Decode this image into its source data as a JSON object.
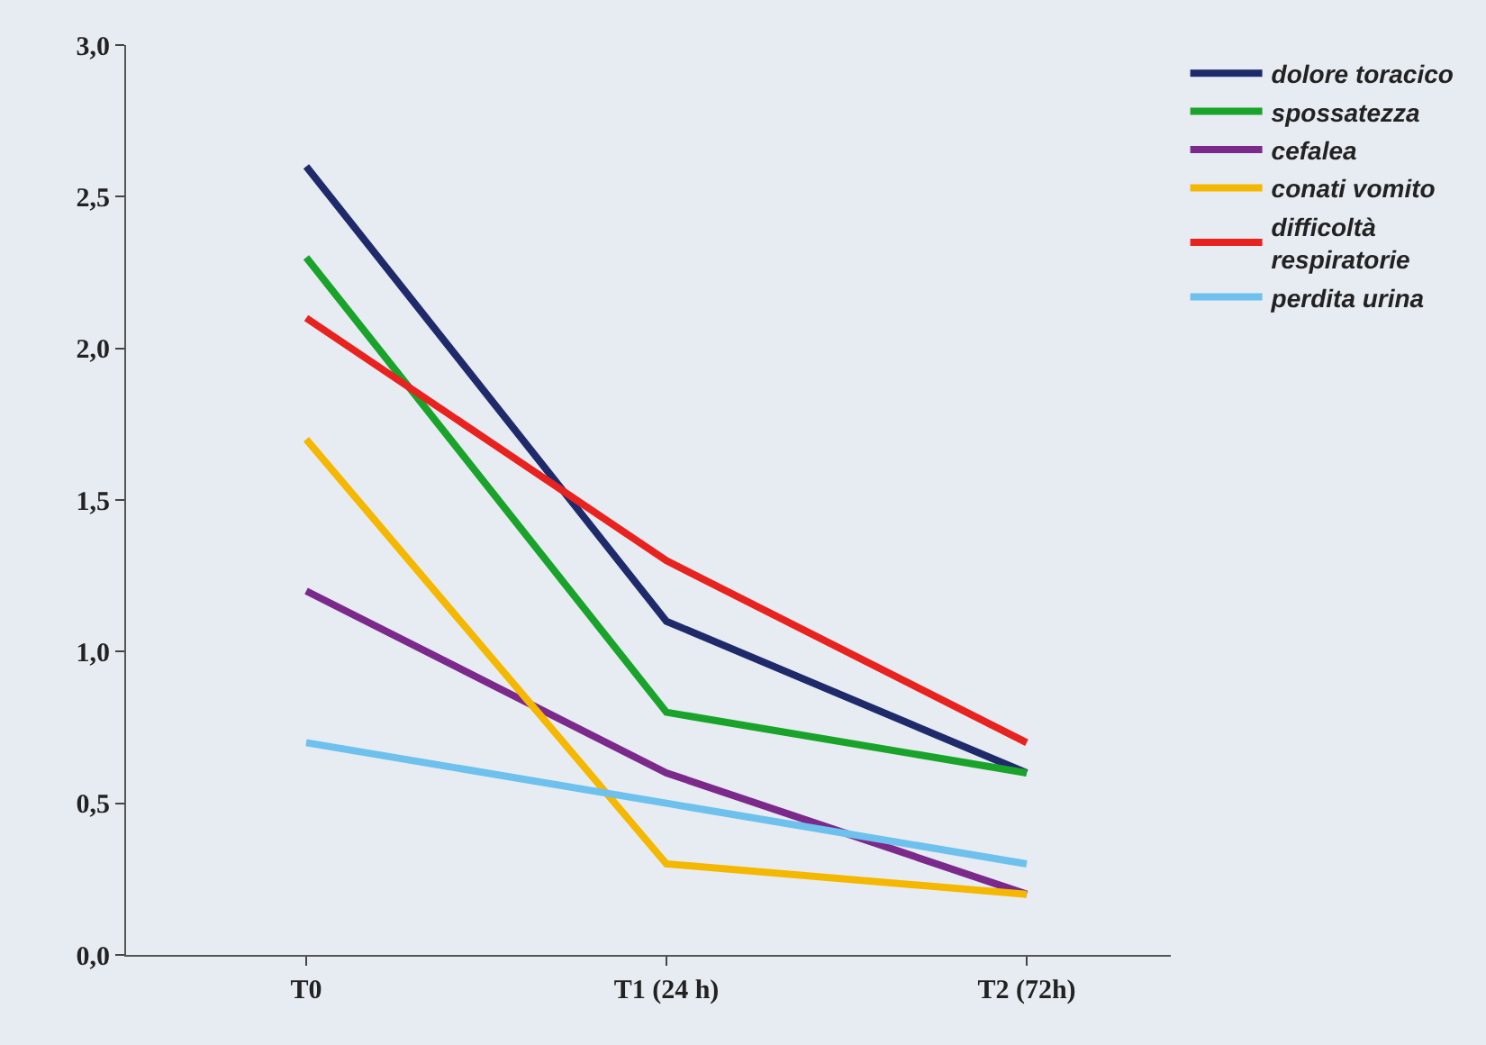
{
  "chart_data": {
    "type": "line",
    "categories": [
      "T0",
      "T1 (24 h)",
      "T2 (72h)"
    ],
    "series": [
      {
        "name": "dolore toracico",
        "color": "#1f2a6b",
        "values": [
          2.6,
          1.1,
          0.6
        ]
      },
      {
        "name": "spossatezza",
        "color": "#1aa32a",
        "values": [
          2.3,
          0.8,
          0.6
        ]
      },
      {
        "name": "cefalea",
        "color": "#7b2a8c",
        "values": [
          1.2,
          0.6,
          0.2
        ]
      },
      {
        "name": "conati vomito",
        "color": "#f5b800",
        "values": [
          1.7,
          0.3,
          0.2
        ]
      },
      {
        "name": "difficoltà respiratorie",
        "color": "#e8231f",
        "values": [
          2.1,
          1.3,
          0.7
        ]
      },
      {
        "name": "perdita urina",
        "color": "#6ec1ec",
        "values": [
          0.7,
          0.5,
          0.3
        ]
      }
    ],
    "ylim": [
      0,
      3
    ],
    "yticks": [
      {
        "value": 0,
        "label": "0,0"
      },
      {
        "value": 0.5,
        "label": "0,5"
      },
      {
        "value": 1,
        "label": "1,0"
      },
      {
        "value": 1.5,
        "label": "1,5"
      },
      {
        "value": 2,
        "label": "2,0"
      },
      {
        "value": 2.5,
        "label": "2,5"
      },
      {
        "value": 3,
        "label": "3,0"
      }
    ],
    "grid": false,
    "legend": "top right",
    "marker": "none",
    "line_style": "solid"
  }
}
